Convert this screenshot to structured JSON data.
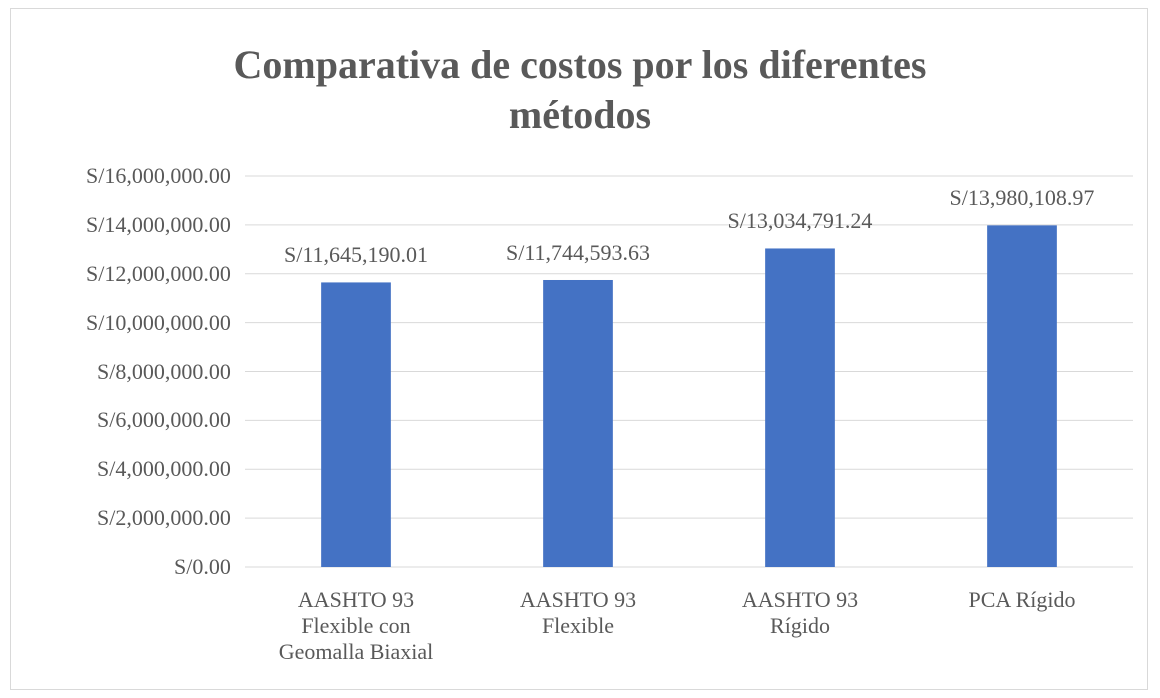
{
  "chart_data": {
    "type": "bar",
    "title": "Comparativa de costos por los diferentes métodos",
    "categories": [
      "AASHTO 93 Flexible con Geomalla Biaxial",
      "AASHTO 93 Flexible",
      "AASHTO 93 Rígido",
      "PCA Rígido"
    ],
    "values": [
      11645190.01,
      11744593.63,
      13034791.24,
      13980108.97
    ],
    "value_labels": [
      "S/11,645,190.01",
      "S/11,744,593.63",
      "S/13,034,791.24",
      "S/13,980,108.97"
    ],
    "color": "#4472c4",
    "ylim": [
      0,
      16000000
    ],
    "yticks": [
      {
        "value": 0,
        "label": "S/0.00"
      },
      {
        "value": 2000000,
        "label": "S/2,000,000.00"
      },
      {
        "value": 4000000,
        "label": "S/4,000,000.00"
      },
      {
        "value": 6000000,
        "label": "S/6,000,000.00"
      },
      {
        "value": 8000000,
        "label": "S/8,000,000.00"
      },
      {
        "value": 10000000,
        "label": "S/10,000,000.00"
      },
      {
        "value": 12000000,
        "label": "S/12,000,000.00"
      },
      {
        "value": 14000000,
        "label": "S/14,000,000.00"
      },
      {
        "value": 16000000,
        "label": "S/16,000,000.00"
      }
    ],
    "grid": true
  }
}
